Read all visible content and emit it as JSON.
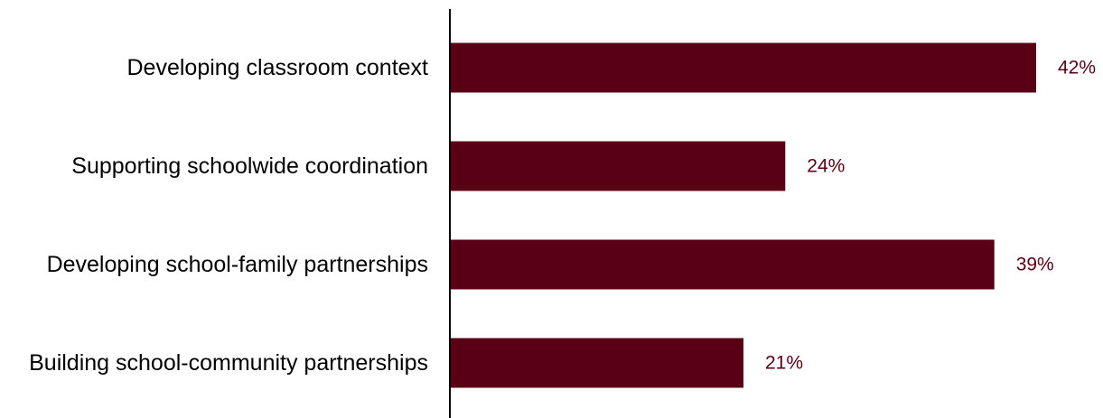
{
  "chart_data": {
    "type": "bar",
    "orientation": "horizontal",
    "categories": [
      "Developing classroom context",
      "Supporting schoolwide coordination",
      "Developing school-family partnerships",
      "Building school-community partnerships"
    ],
    "values": [
      42,
      24,
      39,
      21
    ],
    "data_labels": [
      "42%",
      "24%",
      "39%",
      "21%"
    ],
    "title": "",
    "xlabel": "",
    "ylabel": "",
    "xlim": [
      0,
      42
    ],
    "grid": false,
    "legend": "none",
    "colors": {
      "bar": "#5a0014",
      "data_label": "#5a0014",
      "axis": "#000000",
      "category_label": "#000000"
    }
  }
}
